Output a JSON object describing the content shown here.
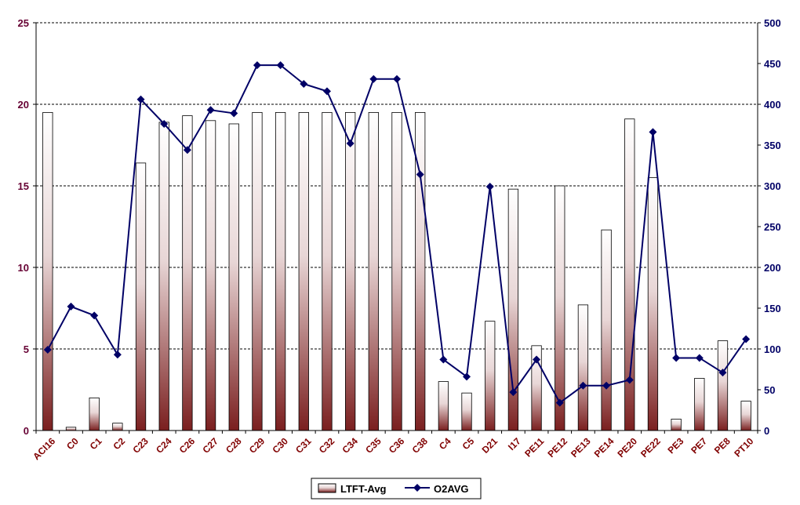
{
  "chart_data": {
    "type": "bar",
    "title": "",
    "xlabel": "",
    "ylabel": "",
    "categories": [
      "ACI16",
      "C0",
      "C1",
      "C2",
      "C23",
      "C24",
      "C26",
      "C27",
      "C28",
      "C29",
      "C30",
      "C31",
      "C32",
      "C34",
      "C35",
      "C36",
      "C38",
      "C4",
      "C5",
      "D21",
      "I17",
      "PE11",
      "PE12",
      "PE13",
      "PE14",
      "PE20",
      "PE22",
      "PE3",
      "PE7",
      "PE8",
      "PT10"
    ],
    "series": [
      {
        "name": "LTFT-Avg",
        "type": "bar",
        "axis": "left",
        "values": [
          19.5,
          0.2,
          2.0,
          0.45,
          16.4,
          18.9,
          19.3,
          19.0,
          18.8,
          19.5,
          19.5,
          19.5,
          19.5,
          19.5,
          19.5,
          19.5,
          19.5,
          3.0,
          2.3,
          6.7,
          14.8,
          5.2,
          15.0,
          7.7,
          12.3,
          19.1,
          15.5,
          0.7,
          3.2,
          5.5,
          1.8
        ]
      },
      {
        "name": "O2AVG",
        "type": "line",
        "axis": "right",
        "values": [
          99,
          152,
          141,
          93,
          406,
          376,
          344,
          393,
          389,
          448,
          448,
          425,
          416,
          352,
          431,
          431,
          314,
          87,
          66,
          299,
          47,
          87,
          34,
          55,
          55,
          62,
          366,
          89,
          89,
          71,
          112
        ]
      }
    ],
    "ylim_left": [
      0,
      25
    ],
    "yticks_left": [
      0,
      5,
      10,
      15,
      20,
      25
    ],
    "ylim_right": [
      0,
      500
    ],
    "yticks_right": [
      0,
      50,
      100,
      150,
      200,
      250,
      300,
      350,
      400,
      450,
      500
    ],
    "grid": "horizontal-dashed",
    "legend": "bottom",
    "colors": {
      "bar_fill_top": "#ffffff",
      "bar_fill_bottom": "#7a1f1f",
      "bar_stroke": "#000000",
      "line": "#000066",
      "marker": "#000066",
      "left_tick_text": "#660033",
      "right_tick_text": "#000066",
      "x_tick_text": "#800000"
    }
  }
}
